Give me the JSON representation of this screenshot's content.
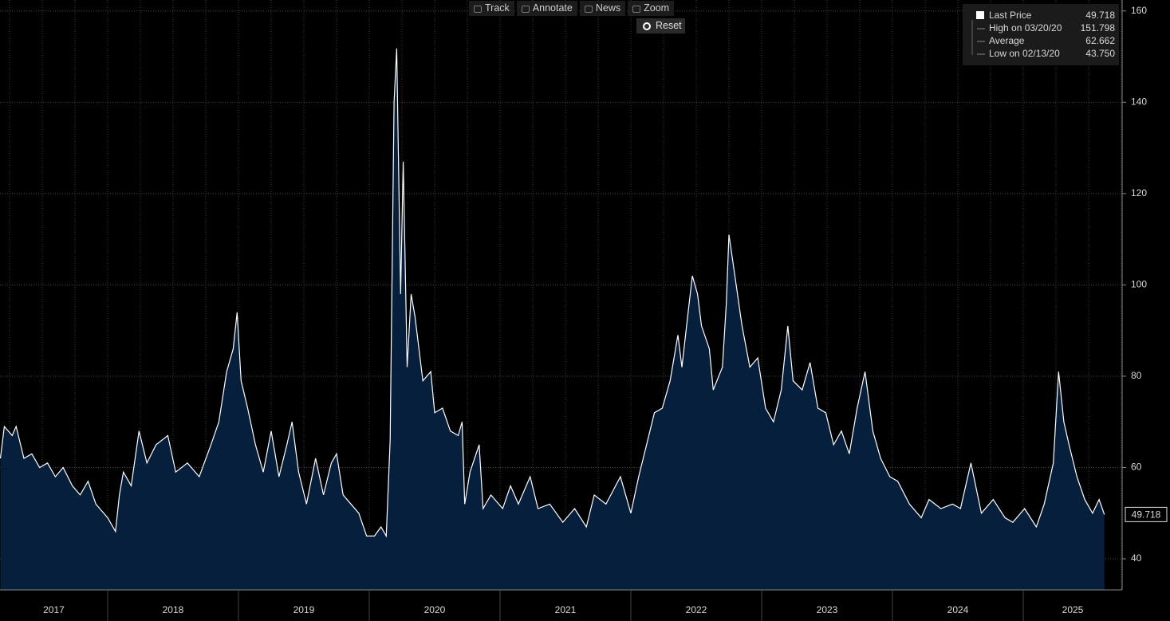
{
  "toolbar": {
    "buttons": [
      "Track",
      "Annotate",
      "News",
      "Zoom"
    ],
    "reset": "Reset"
  },
  "chart_data": {
    "type": "area",
    "series": [
      {
        "name": "Last Price",
        "color": "#ffffff",
        "fill": "#061f3c",
        "x": [
          2017.18,
          2017.21,
          2017.27,
          2017.3,
          2017.36,
          2017.42,
          2017.48,
          2017.54,
          2017.6,
          2017.66,
          2017.73,
          2017.79,
          2017.85,
          2017.91,
          2018.0,
          2018.06,
          2018.09,
          2018.12,
          2018.18,
          2018.24,
          2018.3,
          2018.37,
          2018.46,
          2018.52,
          2018.61,
          2018.7,
          2018.79,
          2018.85,
          2018.91,
          2018.96,
          2018.99,
          2019.02,
          2019.07,
          2019.13,
          2019.19,
          2019.25,
          2019.31,
          2019.37,
          2019.41,
          2019.46,
          2019.52,
          2019.59,
          2019.65,
          2019.71,
          2019.75,
          2019.8,
          2019.86,
          2019.92,
          2019.98,
          2020.04,
          2020.09,
          2020.13,
          2020.16,
          2020.19,
          2020.21,
          2020.24,
          2020.26,
          2020.29,
          2020.32,
          2020.35,
          2020.41,
          2020.47,
          2020.5,
          2020.56,
          2020.62,
          2020.68,
          2020.71,
          2020.73,
          2020.77,
          2020.84,
          2020.87,
          2020.93,
          2021.02,
          2021.08,
          2021.14,
          2021.23,
          2021.29,
          2021.38,
          2021.48,
          2021.57,
          2021.66,
          2021.72,
          2021.81,
          2021.92,
          2022.0,
          2022.06,
          2022.12,
          2022.18,
          2022.24,
          2022.3,
          2022.36,
          2022.39,
          2022.43,
          2022.47,
          2022.51,
          2022.54,
          2022.6,
          2022.63,
          2022.7,
          2022.73,
          2022.75,
          2022.79,
          2022.85,
          2022.91,
          2022.97,
          2023.03,
          2023.09,
          2023.15,
          2023.2,
          2023.24,
          2023.31,
          2023.37,
          2023.43,
          2023.49,
          2023.55,
          2023.61,
          2023.67,
          2023.73,
          2023.79,
          2023.85,
          2023.91,
          2023.98,
          2024.04,
          2024.13,
          2024.22,
          2024.28,
          2024.37,
          2024.46,
          2024.52,
          2024.6,
          2024.68,
          2024.77,
          2024.86,
          2024.92,
          2025.01,
          2025.1,
          2025.16,
          2025.23,
          2025.27,
          2025.31,
          2025.35,
          2025.41,
          2025.47,
          2025.53,
          2025.58,
          2025.62
        ],
        "values": [
          62,
          69,
          67,
          69,
          62,
          63,
          60,
          61,
          58,
          60,
          56,
          54,
          57,
          52,
          49,
          46,
          54,
          59,
          56,
          68,
          61,
          65,
          67,
          59,
          61,
          58,
          65,
          70,
          81,
          86,
          94,
          79,
          73,
          65,
          59,
          68,
          58,
          65,
          70,
          59,
          52,
          62,
          54,
          61,
          63,
          54,
          52,
          50,
          45,
          45,
          47,
          45,
          66,
          140,
          151.798,
          98,
          127,
          82,
          98,
          93,
          79,
          81,
          72,
          73,
          68,
          67,
          70,
          52,
          59,
          65,
          51,
          54,
          51,
          56,
          52,
          58,
          51,
          52,
          48,
          51,
          47,
          54,
          52,
          58,
          50,
          58,
          65,
          72,
          73,
          79,
          89,
          82,
          92,
          102,
          98,
          91,
          86,
          77,
          82,
          96,
          111,
          103,
          91,
          82,
          84,
          73,
          70,
          77,
          91,
          79,
          77,
          83,
          73,
          72,
          65,
          68,
          63,
          73,
          81,
          68,
          62,
          58,
          57,
          52,
          49,
          53,
          51,
          52,
          51,
          61,
          50,
          53,
          49,
          48,
          51,
          47,
          52,
          61,
          81,
          70,
          65,
          58,
          53,
          50,
          53,
          49.718
        ]
      }
    ],
    "xlim": [
      2017.177,
      2025.756
    ],
    "xticks": [
      2017,
      2018,
      2019,
      2020,
      2021,
      2022,
      2023,
      2024,
      2025
    ],
    "ylim": [
      33.2,
      162.4
    ],
    "yticks": [
      40,
      60,
      80,
      100,
      120,
      140,
      160
    ],
    "grid": true,
    "legend": {
      "position": "upper right",
      "entries": [
        {
          "label": "High on 03/20/20",
          "value": 151.798
        },
        {
          "label": "Average",
          "value": 62.662
        },
        {
          "label": "Low on 02/13/20",
          "value": 43.75,
          "value_label": "43.750"
        }
      ]
    }
  }
}
